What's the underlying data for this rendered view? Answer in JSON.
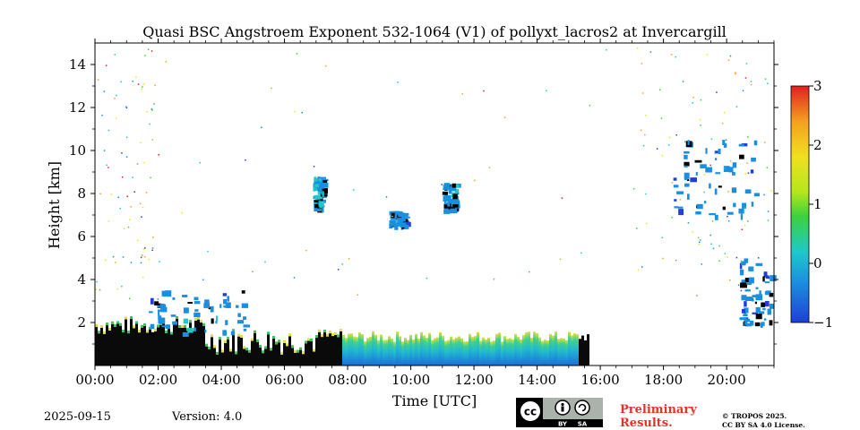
{
  "chart_data": {
    "type": "heatmap",
    "title": "Quasi BSC Angstroem Exponent 532-1064 (V1) of pollyxt_lacros2 at Invercargill",
    "xlabel": "Time [UTC]",
    "ylabel": "Height [km]",
    "xlim_hours": [
      0,
      21.5
    ],
    "ylim_km": [
      0,
      15
    ],
    "x_ticks": [
      "00:00",
      "02:00",
      "04:00",
      "06:00",
      "08:00",
      "10:00",
      "12:00",
      "14:00",
      "16:00",
      "18:00",
      "20:00"
    ],
    "y_ticks": [
      "2",
      "4",
      "6",
      "8",
      "10",
      "12",
      "14"
    ],
    "colorbar": {
      "min": -1,
      "max": 3,
      "ticks": [
        "−1",
        "0",
        "1",
        "2",
        "3"
      ],
      "colors": [
        "#1f3fd6",
        "#1a8fe0",
        "#20c8c8",
        "#3cd23c",
        "#e6e620",
        "#f5a020",
        "#e02020"
      ]
    },
    "features": [
      {
        "name": "boundary-layer",
        "time_start": 0.0,
        "time_end": 15.6,
        "height_start": 0.0,
        "height_end": 2.2,
        "value": 0.1
      },
      {
        "name": "elevated-layer-1",
        "time_start": 1.7,
        "time_end": 4.8,
        "height_start": 1.5,
        "height_end": 3.5,
        "value": -0.3
      },
      {
        "name": "cloud-7h",
        "time_start": 6.9,
        "time_end": 7.2,
        "height_start": 7.3,
        "height_end": 8.8,
        "value": -0.2
      },
      {
        "name": "cloud-9h",
        "time_start": 9.3,
        "time_end": 9.8,
        "height_start": 6.5,
        "height_end": 7.2,
        "value": -0.3
      },
      {
        "name": "cloud-11h",
        "time_start": 11.0,
        "time_end": 11.4,
        "height_start": 7.2,
        "height_end": 8.5,
        "value": -0.2
      },
      {
        "name": "cirrus-19h",
        "time_start": 18.3,
        "time_end": 20.9,
        "height_start": 7.0,
        "height_end": 10.5,
        "value": -0.4
      },
      {
        "name": "descending-layer-21h",
        "time_start": 20.4,
        "time_end": 21.4,
        "height_start": 1.8,
        "height_end": 5.0,
        "value": -0.5
      }
    ]
  },
  "footer": {
    "date": "2025-09-15",
    "version": "Version: 4.0",
    "preliminary_line1": "Preliminary",
    "preliminary_line2": "Results.",
    "copyright_line1": "© TROPOS 2025.",
    "copyright_line2": "CC BY SA 4.0 License.",
    "license_by": "BY",
    "license_sa": "SA"
  }
}
